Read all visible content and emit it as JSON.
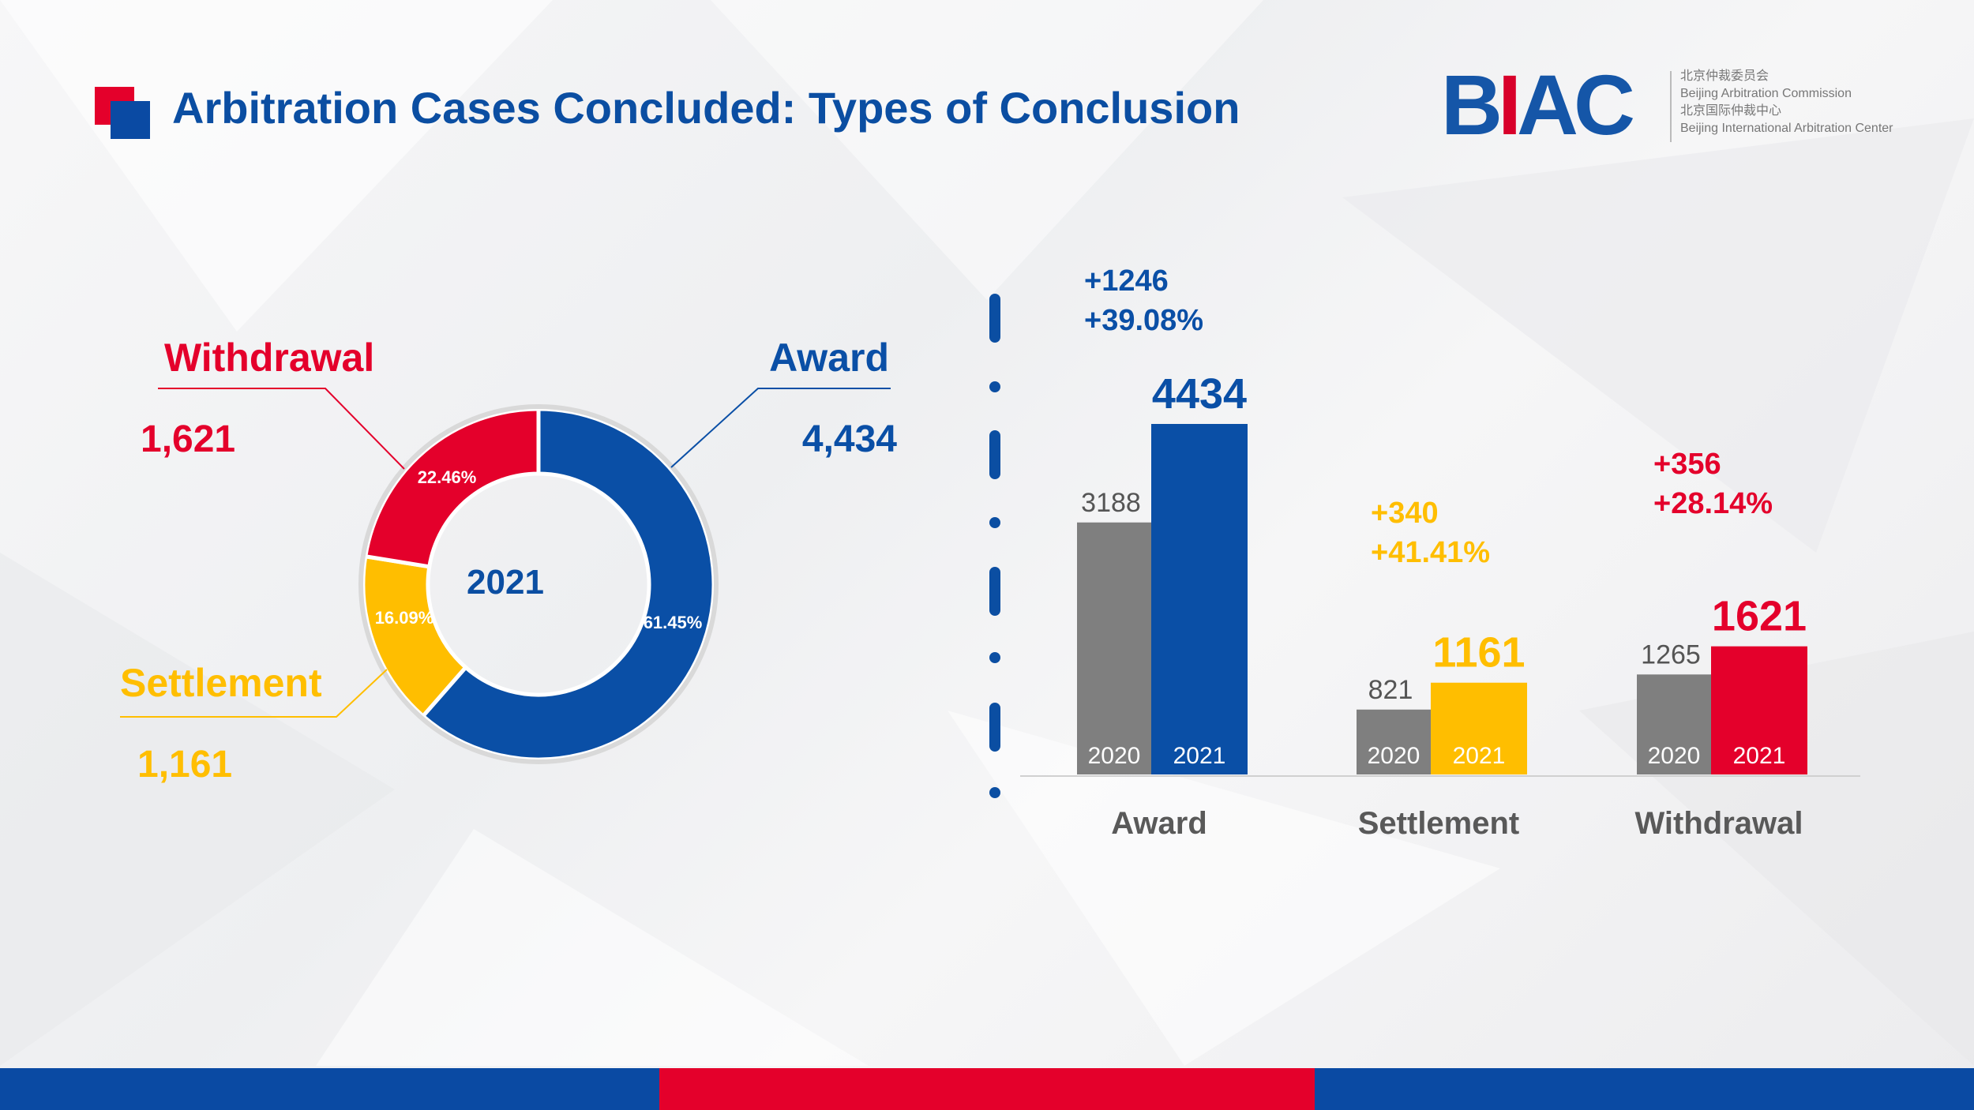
{
  "title": "Arbitration Cases Concluded: Types of Conclusion",
  "logo": {
    "mark": "BIAC",
    "lines": [
      "北京仲裁委员会",
      "Beijing Arbitration Commission",
      "北京国际仲裁中心",
      "Beijing International Arbitration Center"
    ]
  },
  "colors": {
    "award": "#0a4fa6",
    "settlement": "#ffbe00",
    "withdrawal": "#e4002b",
    "gray": "#7f7f7f",
    "blue_text": "#0b4ea2"
  },
  "chart_data": [
    {
      "type": "pie",
      "center_label": "2021",
      "slices": [
        {
          "name": "Award",
          "value": 4434,
          "display_value": "4,434",
          "percent": "61.45%",
          "color": "#0a4fa6"
        },
        {
          "name": "Settlement",
          "value": 1161,
          "display_value": "1,161",
          "percent": "16.09%",
          "color": "#ffbe00"
        },
        {
          "name": "Withdrawal",
          "value": 1621,
          "display_value": "1,621",
          "percent": "22.46%",
          "color": "#e4002b"
        }
      ]
    },
    {
      "type": "bar",
      "categories": [
        "Award",
        "Settlement",
        "Withdrawal"
      ],
      "series": [
        {
          "name": "2020",
          "values": [
            3188,
            821,
            1265
          ],
          "color": "#7f7f7f"
        },
        {
          "name": "2021",
          "values": [
            4434,
            1161,
            1621
          ]
        }
      ],
      "colors_2021": [
        "#0a4fa6",
        "#ffbe00",
        "#e4002b"
      ],
      "changes": [
        {
          "abs": "+1246",
          "pct": "+39.08%"
        },
        {
          "abs": "+340",
          "pct": "+41.41%"
        },
        {
          "abs": "+356",
          "pct": "+28.14%"
        }
      ],
      "ylim": [
        0,
        4434
      ]
    }
  ]
}
